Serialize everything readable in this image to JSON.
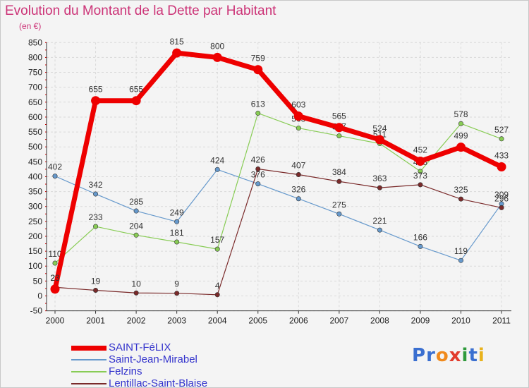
{
  "header": {
    "title": "Evolution du Montant de la Dette par Habitant",
    "subtitle": "(en €)"
  },
  "brand": {
    "letters": [
      "P",
      "r",
      "o",
      "x",
      "i",
      "t",
      "i"
    ],
    "colors": [
      "#3a6fd0",
      "#3a6fd0",
      "#f08a1c",
      "#e23b2c",
      "#2f9a3c",
      "#3a6fd0",
      "#e9b21c"
    ]
  },
  "chart_data": {
    "type": "line",
    "title": "Evolution du Montant de la Dette par Habitant",
    "ylabel": "(en €)",
    "xlabel": "",
    "x": [
      "2000",
      "2001",
      "2002",
      "2003",
      "2004",
      "2005",
      "2006",
      "2007",
      "2008",
      "2009",
      "2010",
      "2011"
    ],
    "ylim": [
      -50,
      850
    ],
    "yticks": [
      -50,
      0,
      50,
      100,
      150,
      200,
      250,
      300,
      350,
      400,
      450,
      500,
      550,
      600,
      650,
      700,
      750,
      800,
      850
    ],
    "grid": true,
    "legend_position": "bottom-left",
    "series": [
      {
        "name": "SAINT-FéLIX",
        "color": "#ee0000",
        "values": [
          23,
          655,
          655,
          815,
          800,
          759,
          603,
          565,
          524,
          452,
          499,
          433
        ],
        "labels": [
          "23",
          "655",
          "655",
          "815",
          "800",
          "759",
          "603",
          "565",
          "524",
          "452",
          "499",
          "433"
        ],
        "emphasis": true
      },
      {
        "name": "Saint-Jean-Mirabel",
        "color": "#6699cc",
        "values": [
          402,
          342,
          285,
          249,
          424,
          376,
          326,
          275,
          221,
          166,
          119,
          309
        ],
        "labels": [
          "402",
          "342",
          "285",
          "249",
          "424",
          "376",
          "326",
          "275",
          "221",
          "166",
          "119",
          "309"
        ],
        "emphasis": false
      },
      {
        "name": "Felzins",
        "color": "#88cc55",
        "values": [
          110,
          233,
          204,
          181,
          157,
          613,
          563,
          537,
          511,
          418,
          578,
          527
        ],
        "labels": [
          "110",
          "233",
          "204",
          "181",
          "157",
          "613",
          "563",
          "537",
          "511",
          "418",
          "578",
          "527"
        ],
        "emphasis": false
      },
      {
        "name": "Lentillac-Saint-Blaise",
        "color": "#7a2a2a",
        "values": [
          29,
          19,
          10,
          9,
          4,
          426,
          407,
          384,
          363,
          373,
          325,
          296
        ],
        "labels": [
          "29",
          "19",
          "10",
          "9",
          "4",
          "426",
          "407",
          "384",
          "363",
          "373",
          "325",
          "296"
        ],
        "emphasis": false
      }
    ]
  }
}
